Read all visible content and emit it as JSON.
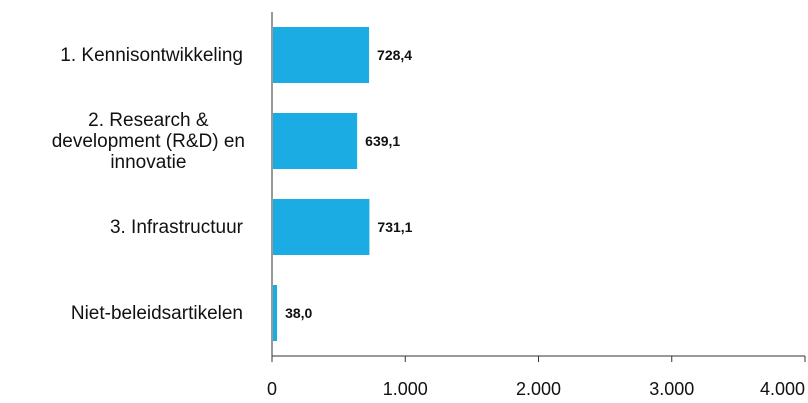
{
  "chart_data": {
    "type": "bar",
    "orientation": "horizontal",
    "title": "",
    "xlabel": "",
    "ylabel": "",
    "categories": [
      [
        "1. Kennisontwikkeling"
      ],
      [
        "2. Research &",
        "development (R&D) en",
        "innovatie"
      ],
      [
        "3. Infrastructuur"
      ],
      [
        "Niet-beleidsartikelen"
      ]
    ],
    "values": [
      728.4,
      639.1,
      731.1,
      38.0
    ],
    "value_labels": [
      "728,4",
      "639,1",
      "731,1",
      "38,0"
    ],
    "xlim": [
      0,
      4000
    ],
    "xticks": [
      0,
      1000,
      2000,
      3000,
      4000
    ],
    "xtick_labels": [
      "0",
      "1.000",
      "2.000",
      "3.000",
      "4.000"
    ],
    "grid": false,
    "legend": "none",
    "bar_color": "#1aace3"
  }
}
